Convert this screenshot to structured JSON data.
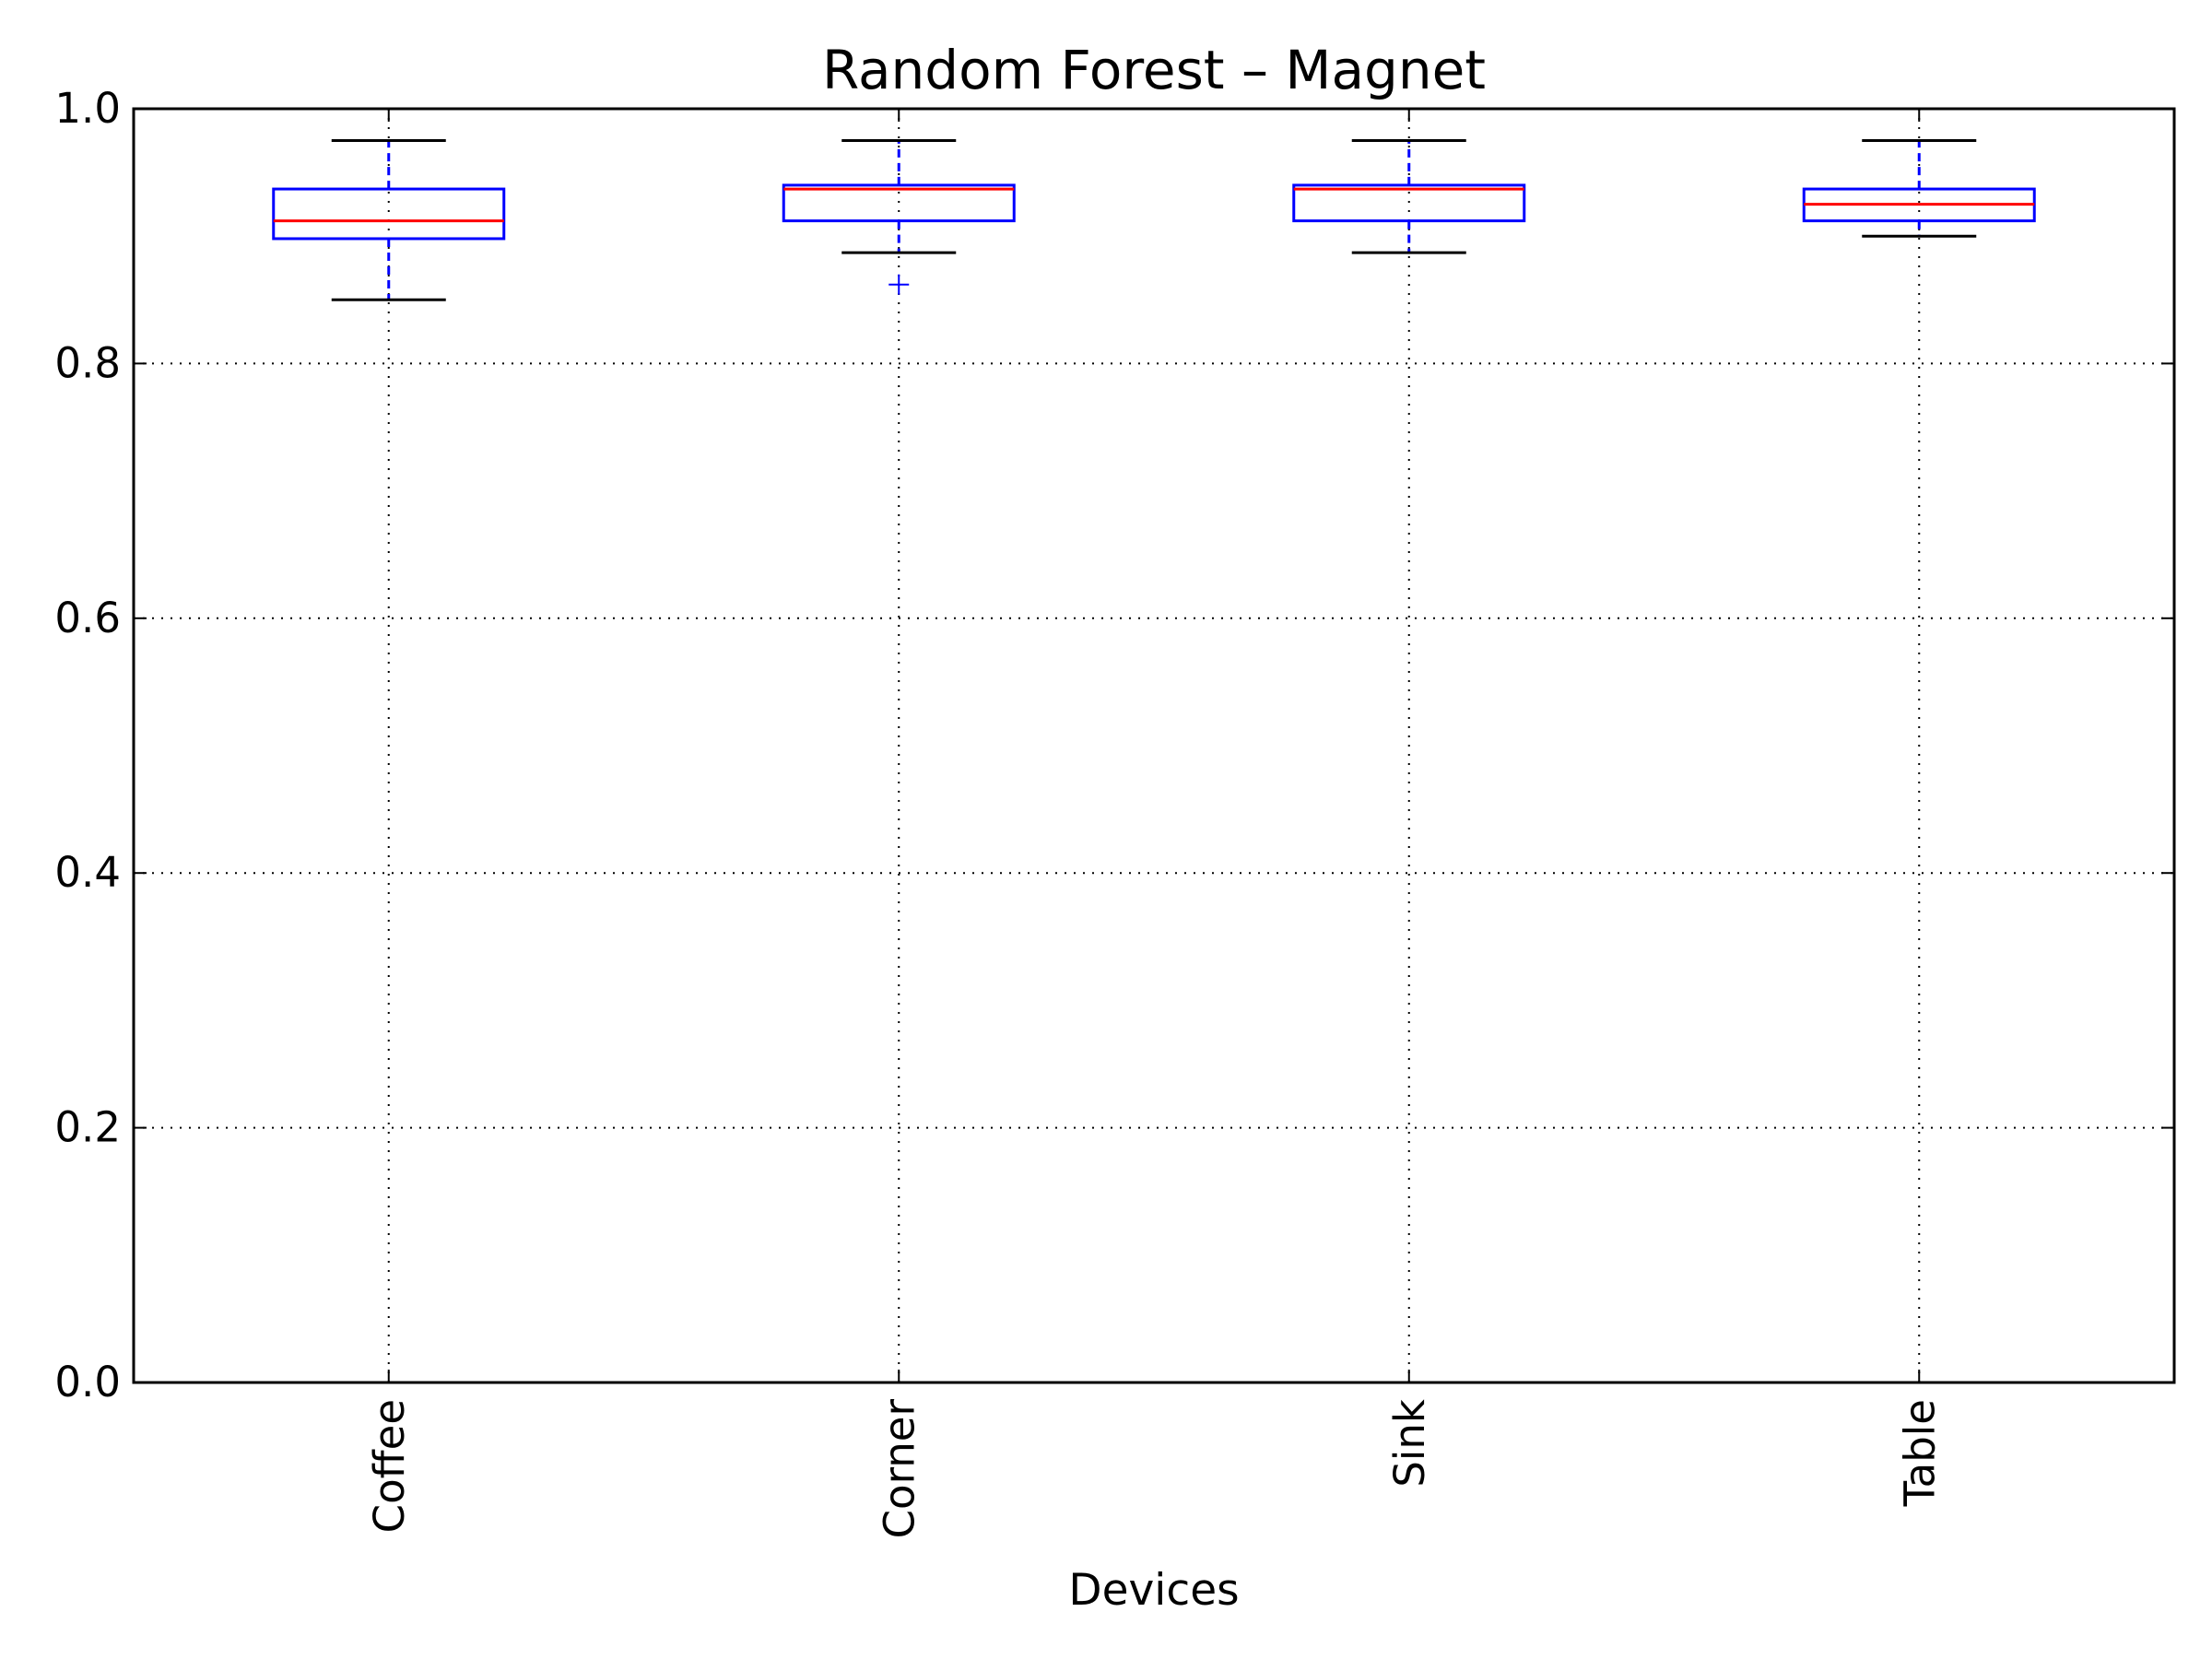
{
  "chart_data": {
    "type": "box",
    "title": "Random Forest – Magnet",
    "xlabel": "Devices",
    "ylabel": "",
    "ylim": [
      0.0,
      1.0
    ],
    "yticks": [
      "0.0",
      "0.2",
      "0.4",
      "0.6",
      "0.8",
      "1.0"
    ],
    "ytick_values": [
      0.0,
      0.2,
      0.4,
      0.6,
      0.8,
      1.0
    ],
    "grid": true,
    "categories": [
      "Coffee",
      "Corner",
      "Sink",
      "Table"
    ],
    "boxes": [
      {
        "category": "Coffee",
        "whisker_low": 0.85,
        "q1": 0.898,
        "median": 0.912,
        "q3": 0.937,
        "whisker_high": 0.975,
        "outliers": []
      },
      {
        "category": "Corner",
        "whisker_low": 0.887,
        "q1": 0.912,
        "median": 0.937,
        "q3": 0.94,
        "whisker_high": 0.975,
        "outliers": [
          0.862
        ]
      },
      {
        "category": "Sink",
        "whisker_low": 0.887,
        "q1": 0.912,
        "median": 0.937,
        "q3": 0.94,
        "whisker_high": 0.975,
        "outliers": []
      },
      {
        "category": "Table",
        "whisker_low": 0.9,
        "q1": 0.912,
        "median": 0.925,
        "q3": 0.937,
        "whisker_high": 0.975,
        "outliers": []
      }
    ],
    "colors": {
      "box": "#0000ff",
      "median": "#ff0000",
      "cap": "#000000",
      "outlier": "#0000ff"
    }
  }
}
